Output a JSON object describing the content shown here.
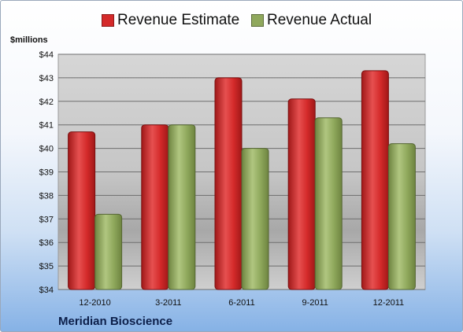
{
  "chart_data": {
    "type": "bar",
    "ylabel": "$millions",
    "ylim": [
      34,
      44
    ],
    "yticks": [
      "$34",
      "$35",
      "$36",
      "$37",
      "$38",
      "$39",
      "$40",
      "$41",
      "$42",
      "$43",
      "$44"
    ],
    "categories": [
      "12-2010",
      "3-2011",
      "6-2011",
      "9-2011",
      "12-2011"
    ],
    "series": [
      {
        "name": "Revenue Estimate",
        "values": [
          40.7,
          41.0,
          43.0,
          42.1,
          43.3
        ]
      },
      {
        "name": "Revenue Actual",
        "values": [
          37.2,
          41.0,
          40.0,
          41.3,
          40.2
        ]
      }
    ],
    "grid": true,
    "legend": "top",
    "footer": "Meridian Bioscience"
  },
  "colors": {
    "estimate": "#d42a2a",
    "actual": "#8fa85c"
  }
}
